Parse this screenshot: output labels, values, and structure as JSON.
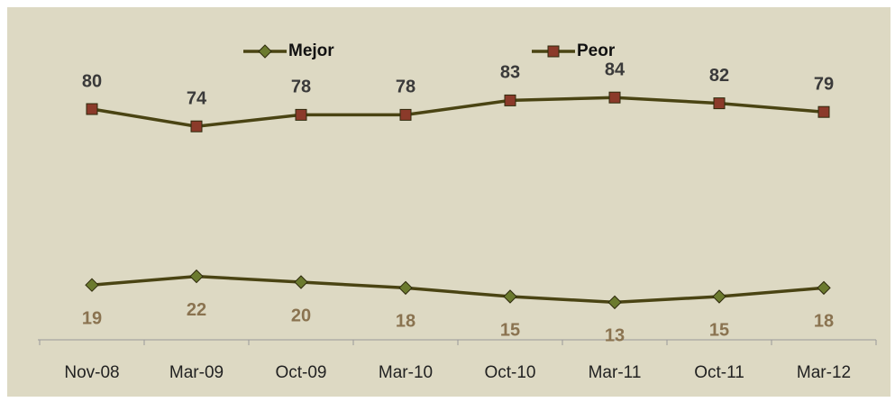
{
  "chart_data": {
    "type": "line",
    "categories": [
      "Nov-08",
      "Mar-09",
      "Oct-09",
      "Mar-10",
      "Oct-10",
      "Mar-11",
      "Oct-11",
      "Mar-12"
    ],
    "series": [
      {
        "name": "Mejor",
        "color": "#4a4413",
        "marker_color": "#6b7a2e",
        "marker": "diamond",
        "label_color": "#8a7350",
        "label_position": "below",
        "values": [
          19,
          22,
          20,
          18,
          15,
          13,
          15,
          18
        ]
      },
      {
        "name": "Peor",
        "color": "#4a4413",
        "marker_color": "#8b3a2a",
        "marker": "square",
        "label_color": "#3a3a3a",
        "label_position": "above",
        "values": [
          80,
          74,
          78,
          78,
          83,
          84,
          82,
          79
        ]
      }
    ],
    "ylim": [
      0,
      100
    ],
    "legend": "top",
    "background": "#ddd9c3"
  }
}
